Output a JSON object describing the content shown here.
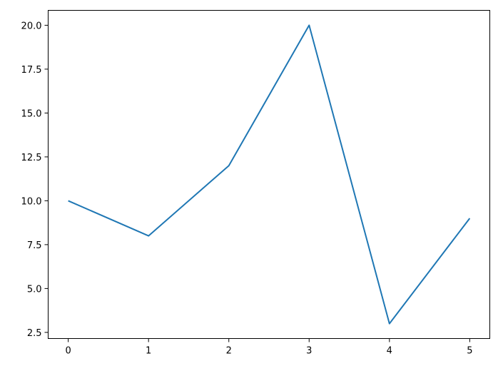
{
  "chart_data": {
    "type": "line",
    "title": "",
    "xlabel": "",
    "ylabel": "",
    "x": [
      0,
      1,
      2,
      3,
      4,
      5
    ],
    "series": [
      {
        "values": [
          10,
          8,
          12,
          20,
          3,
          9
        ],
        "color": "#1f77b4"
      }
    ],
    "xlim": [
      -0.25,
      5.25
    ],
    "ylim": [
      2.15,
      20.85
    ],
    "xticks": [
      0,
      1,
      2,
      3,
      4,
      5
    ],
    "xtick_labels": [
      "0",
      "1",
      "2",
      "3",
      "4",
      "5"
    ],
    "yticks": [
      2.5,
      5.0,
      7.5,
      10.0,
      12.5,
      15.0,
      17.5,
      20.0
    ],
    "ytick_labels": [
      "2.5",
      "5.0",
      "7.5",
      "10.0",
      "12.5",
      "15.0",
      "17.5",
      "20.0"
    ],
    "grid": false,
    "legend": "none"
  }
}
